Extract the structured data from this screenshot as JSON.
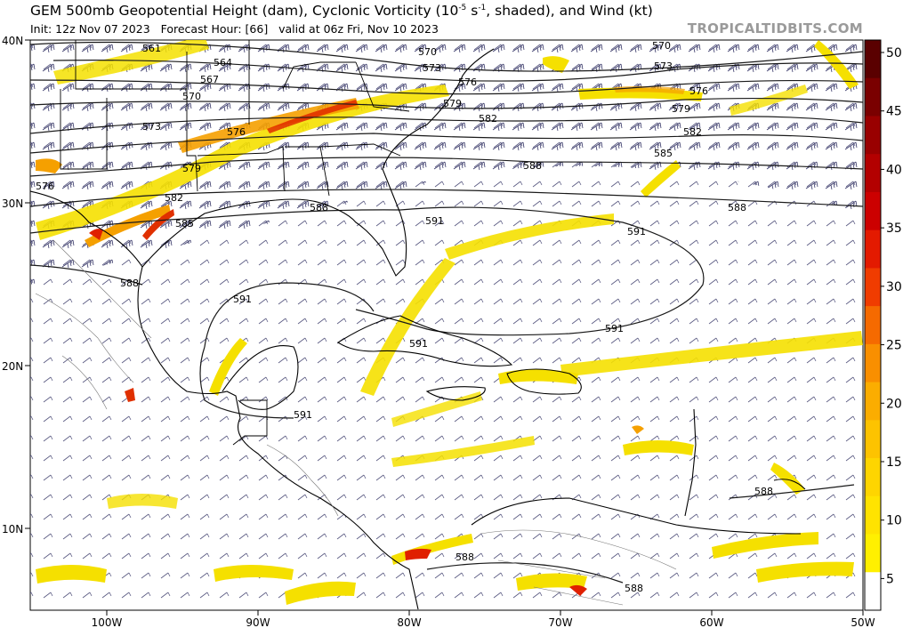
{
  "header": {
    "title_pre": "GEM 500mb Geopotential Height (dam), Cyclonic Vorticity (10",
    "title_exp": "-5",
    "title_mid": " s",
    "title_exp2": "-1",
    "title_post": ", shaded), and Wind (kt)",
    "init": "Init: 12z Nov 07 2023",
    "forecast_hour": "Forecast Hour: [66]",
    "valid": "valid at 06z Fri, Nov 10 2023",
    "brand": "TROPICALTIDBITS.COM"
  },
  "axes": {
    "lat_labels": [
      "40N",
      "30N",
      "20N",
      "10N"
    ],
    "lon_labels": [
      "100W",
      "90W",
      "80W",
      "70W",
      "60W",
      "50W"
    ]
  },
  "colorbar": {
    "ticks": [
      "50",
      "45",
      "40",
      "35",
      "30",
      "25",
      "20",
      "15",
      "10",
      "5"
    ],
    "colors": [
      "#5a0000",
      "#7a0000",
      "#990000",
      "#b30000",
      "#cc0000",
      "#e31a00",
      "#f03c00",
      "#f56a00",
      "#f98f00",
      "#fbad00",
      "#fdc300",
      "#fed500",
      "#ffe300",
      "#fff000",
      "#ffffff"
    ]
  },
  "contour_labels": {
    "h561": "561",
    "h564": "564",
    "h567": "567",
    "h570": "570",
    "h573": "573",
    "h576": "576",
    "h579": "579",
    "h582": "582",
    "h585": "585",
    "h588": "588",
    "h591": "591"
  },
  "colors": {
    "contour": "#1a1a1a",
    "barb": "#3a3a6a",
    "vort_light": "#f5e000",
    "vort_mid": "#f5a000",
    "vort_strong": "#e02000"
  }
}
